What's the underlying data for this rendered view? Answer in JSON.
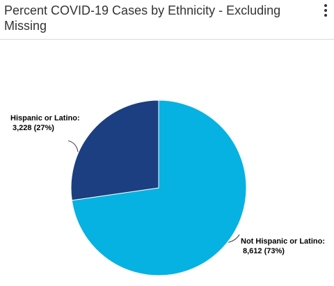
{
  "header": {
    "title": "Percent COVID-19 Cases by Ethnicity - Excluding Missing"
  },
  "menu": {
    "icon": "more-vertical-icon"
  },
  "chart_data": {
    "type": "pie",
    "title": "Percent COVID-19 Cases by Ethnicity - Excluding Missing",
    "slices": [
      {
        "label": "Not Hispanic or Latino:",
        "value": 8612,
        "value_text": "8,612 (73%)",
        "percent": 73,
        "color": "#06b2e2"
      },
      {
        "label": "Hispanic or Latino:",
        "value": 3228,
        "value_text": "3,228 (27%)",
        "percent": 27,
        "color": "#1b3f80"
      }
    ],
    "start_angle_deg": 0,
    "direction": "clockwise",
    "legend": "none",
    "data_labels": "outside"
  }
}
